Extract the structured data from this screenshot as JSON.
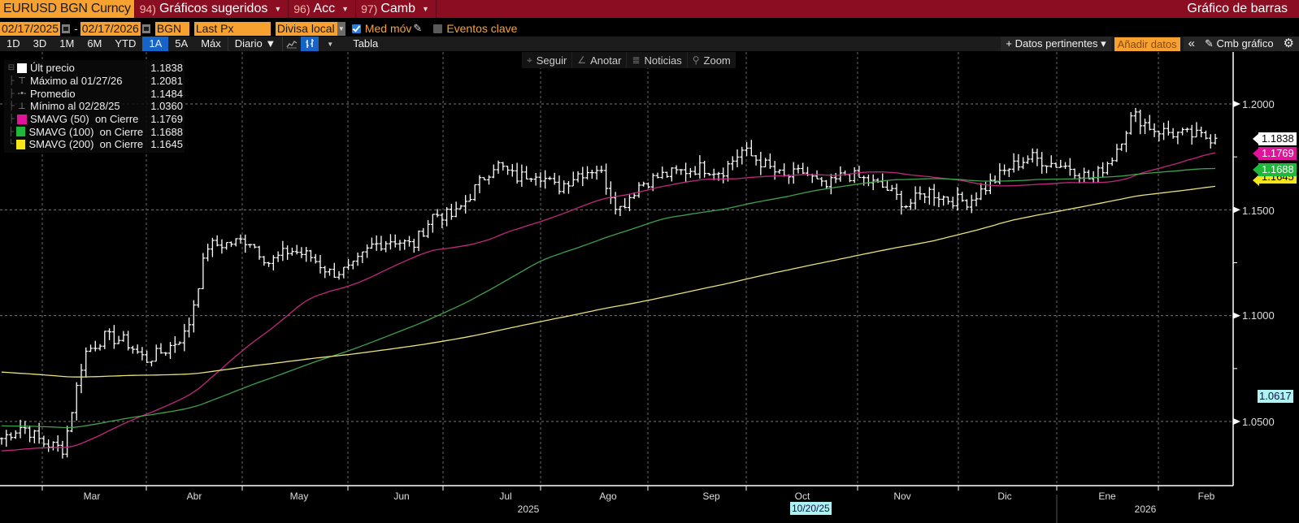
{
  "topbar": {
    "ticker": "EURUSD BGN Curncy",
    "menus": [
      {
        "num": "94)",
        "label": "Gráficos sugeridos"
      },
      {
        "num": "96)",
        "label": "Acc"
      },
      {
        "num": "97)",
        "label": "Camb"
      }
    ],
    "title": "Gráfico de barras"
  },
  "controls": {
    "start_date": "02/17/2025",
    "end_date": "02/17/2026",
    "source": "BGN",
    "field": "Last Px",
    "currency": "Divisa local",
    "moving_avg_label": "Med móv",
    "moving_avg_checked": true,
    "key_events_label": "Eventos clave",
    "key_events_checked": false
  },
  "toolbar": {
    "ranges": [
      "1D",
      "3D",
      "1M",
      "6M",
      "YTD",
      "1A",
      "5A",
      "Máx"
    ],
    "active_range": "1A",
    "frequency": "Diario ▼",
    "table_label": "Tabla",
    "related_data": "+ Datos pertinentes ▾",
    "add_data": "Añadir datos",
    "collapse": "«",
    "edit_chart": "Cmb gráfico"
  },
  "floatbar": {
    "items": [
      {
        "icon": "crosshair-icon",
        "glyph": "⌖",
        "label": "Seguir"
      },
      {
        "icon": "annotate-icon",
        "glyph": "∠",
        "label": "Anotar"
      },
      {
        "icon": "news-icon",
        "glyph": "≣",
        "label": "Noticias"
      },
      {
        "icon": "zoom-icon",
        "glyph": "⚲",
        "label": "Zoom"
      }
    ]
  },
  "legend": {
    "items": [
      {
        "label": "Últ precio",
        "value": "1.1838",
        "swatch": "#ffffff",
        "kind": "swatch"
      },
      {
        "label": "Máximo al 01/27/26",
        "value": "1.2081",
        "kind": "high"
      },
      {
        "label": "Promedio",
        "value": "1.1484",
        "kind": "avg"
      },
      {
        "label": "Mínimo al 02/28/25",
        "value": "1.0360",
        "kind": "low"
      },
      {
        "label": "SMAVG (50)  on Cierre",
        "value": "1.1769",
        "swatch": "#e0139a",
        "kind": "swatch"
      },
      {
        "label": "SMAVG (100)  on Cierre",
        "value": "1.1688",
        "swatch": "#1fb83b",
        "kind": "swatch"
      },
      {
        "label": "SMAVG (200)  on Cierre",
        "value": "1.1645",
        "swatch": "#f5e61a",
        "kind": "swatch"
      }
    ]
  },
  "price_tags": [
    {
      "value": "1.1838",
      "bg": "#ffffff",
      "fg": "#000000"
    },
    {
      "value": "1.1769",
      "bg": "#e0139a",
      "fg": "#ffffff"
    },
    {
      "value": "1.1688",
      "bg": "#1fb83b",
      "fg": "#ffffff"
    },
    {
      "value": "1.1645",
      "bg": "#f5e61a",
      "fg": "#000000"
    }
  ],
  "cursor": {
    "price": "1.0617",
    "date": "10/20/25"
  },
  "chart_data": {
    "type": "bar",
    "title": "EURUSD BGN Curncy - Gráfico de barras",
    "xlabel": "",
    "ylabel": "",
    "ylim": [
      1.031,
      1.212
    ],
    "y_ticks": [
      "1.0500",
      "1.1000",
      "1.1500",
      "1.2000"
    ],
    "x_months": [
      "Mar",
      "Abr",
      "May",
      "Jun",
      "Jul",
      "Ago",
      "Sep",
      "Oct",
      "Nov",
      "Dic",
      "Ene",
      "Feb"
    ],
    "x_years": [
      "2025",
      "2026"
    ],
    "grid": true,
    "legend_position": "top-left",
    "stats": {
      "last": 1.1838,
      "high": 1.2081,
      "high_date": "01/27/26",
      "avg": 1.1484,
      "low": 1.036,
      "low_date": "02/28/25"
    },
    "weekly_close": [
      1.042,
      1.048,
      1.04,
      1.037,
      1.082,
      1.09,
      1.088,
      1.079,
      1.084,
      1.092,
      1.133,
      1.134,
      1.136,
      1.125,
      1.131,
      1.128,
      1.12,
      1.122,
      1.133,
      1.136,
      1.133,
      1.148,
      1.147,
      1.16,
      1.172,
      1.165,
      1.168,
      1.16,
      1.167,
      1.17,
      1.15,
      1.162,
      1.166,
      1.168,
      1.17,
      1.168,
      1.178,
      1.172,
      1.165,
      1.168,
      1.16,
      1.167,
      1.164,
      1.16,
      1.152,
      1.159,
      1.155,
      1.154,
      1.162,
      1.17,
      1.175,
      1.172,
      1.17,
      1.164,
      1.175,
      1.195,
      1.188,
      1.186,
      1.185,
      1.1838
    ],
    "series": [
      {
        "name": "SMAVG (50) on Cierre",
        "color": "#c0287e",
        "last": 1.1769
      },
      {
        "name": "SMAVG (100) on Cierre",
        "color": "#3fa04d",
        "last": 1.1688
      },
      {
        "name": "SMAVG (200) on Cierre",
        "color": "#e8e27a",
        "last": 1.1645
      }
    ]
  }
}
